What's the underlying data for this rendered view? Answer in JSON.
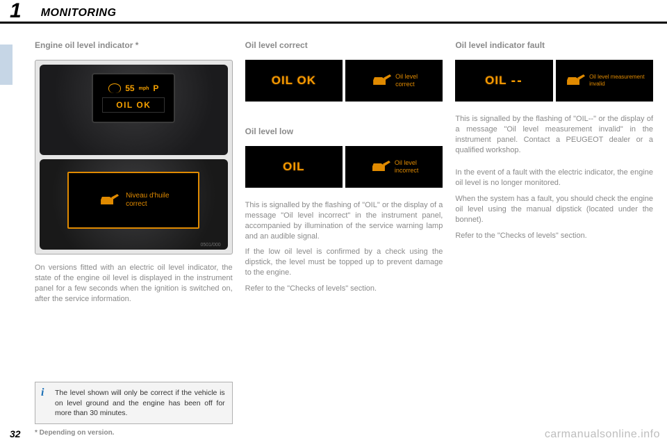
{
  "header": {
    "chapter_num": "1",
    "chapter_title": "MONITORING"
  },
  "footer": {
    "page_num": "32",
    "footnote": "* Depending on version.",
    "watermark": "carmanualsonline.info"
  },
  "colors": {
    "accent": "#f59a00",
    "accent2": "#e08a00",
    "greytext": "#8a8a8a",
    "divider": "#000000",
    "tab": "#c6d6e6",
    "watermark": "#bdbdbd",
    "info_border": "#b0b0b0",
    "info_bg": "#f4f4f4",
    "info_i": "#1b6fb5"
  },
  "col1": {
    "heading": "Engine oil level indicator *",
    "dash1": {
      "speed": "55",
      "unit": "mph",
      "gear": "P",
      "oil_ok": "OIL OK"
    },
    "dash2": {
      "label": "Niveau d'huile\ncorrect",
      "footer": "0501/000"
    },
    "para": "On versions fitted with an electric oil level indicator, the state of the engine oil level is displayed in the instrument panel for a few seconds when the ignition is switched on, after the service information.",
    "info": "The level shown will only be correct if the vehicle is on level ground and the engine has been off for more than 30 minutes."
  },
  "col2": {
    "heading1": "Oil level correct",
    "pair1": {
      "left": "OIL OK",
      "right": "Oil level\ncorrect"
    },
    "heading2": "Oil level low",
    "pair2": {
      "left": "OIL",
      "right": "Oil level\nincorrect"
    },
    "para1": "This is signalled by the flashing of \"OIL\" or the display of a message \"Oil level incorrect\" in the instrument panel, accompanied by illumination of the service warning lamp and an audible signal.",
    "para2": "If the low oil level is confirmed by a check using the dipstick, the level must be topped up to prevent damage to the engine.",
    "para3": "Refer to the \"Checks of levels\" section."
  },
  "col3": {
    "heading": "Oil level indicator fault",
    "pair": {
      "left_a": "OIL",
      "left_b": "--",
      "right": "Oil level measurement\ninvalid"
    },
    "para1": "This is signalled by the flashing of \"OIL--\" or the display of a message \"Oil level measurement invalid\" in the instrument panel. Contact a PEUGEOT dealer or a qualified workshop.",
    "para2": "In the event of a fault with the electric indicator, the engine oil level is no longer monitored.",
    "para3": "When the system has a fault, you should check the engine oil level using the manual dipstick (located under the bonnet).",
    "para4": "Refer to the \"Checks of levels\" section."
  }
}
